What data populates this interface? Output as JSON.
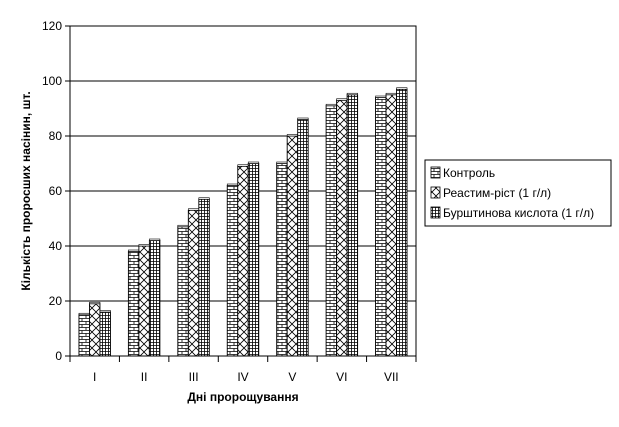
{
  "chart_data": {
    "type": "bar",
    "title": "",
    "xlabel": "Дні пророщування",
    "ylabel": "Кількість проросших насінин, шт.",
    "categories": [
      "I",
      "II",
      "III",
      "IV",
      "V",
      "VI",
      "VII"
    ],
    "ylim": [
      0,
      120
    ],
    "yticks": [
      0,
      20,
      40,
      60,
      80,
      100,
      120
    ],
    "grid": true,
    "legend_position": "right",
    "series": [
      {
        "name": "Контроль",
        "values": [
          15,
          38,
          47,
          62,
          70,
          91,
          94
        ],
        "pattern": "brick-horizontal"
      },
      {
        "name": "Реастим-ріст (1 г/л)",
        "values": [
          19,
          40,
          53,
          69,
          80,
          93,
          95
        ],
        "pattern": "diagonal-cross"
      },
      {
        "name": "Бурштинова кислота (1 г/л)",
        "values": [
          16,
          42,
          57,
          70,
          86,
          95,
          97
        ],
        "pattern": "brick-square"
      }
    ]
  }
}
